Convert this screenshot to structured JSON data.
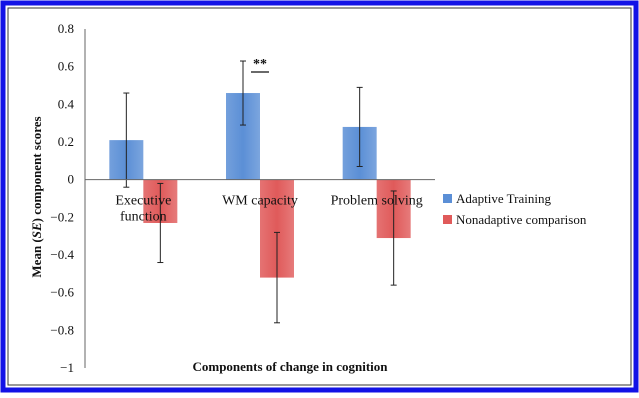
{
  "chart_data": {
    "type": "bar",
    "title": "",
    "xlabel": "Components of change in cognition",
    "ylabel_prefix": "Mean (",
    "ylabel_italic": "SE",
    "ylabel_suffix": ") component scores",
    "ylim": [
      -1,
      0.8
    ],
    "yticks": [
      0.8,
      0.6,
      0.4,
      0.2,
      0,
      -0.2,
      -0.4,
      -0.6,
      -0.8,
      -1
    ],
    "ytick_labels": [
      "0.8",
      "0.6",
      "0.4",
      "0.2",
      "0",
      "−0.2",
      "−0.4",
      "−0.6",
      "−0.8",
      "−1"
    ],
    "categories": [
      {
        "lines": [
          "Executive",
          "function"
        ]
      },
      {
        "lines": [
          "WM capacity"
        ]
      },
      {
        "lines": [
          "Problem solving"
        ]
      }
    ],
    "series": [
      {
        "name": "Adaptive Training",
        "color": "#5b8fd6",
        "values": [
          0.21,
          0.46,
          0.28
        ],
        "err_low": [
          -0.04,
          0.29,
          0.07
        ],
        "err_high": [
          0.46,
          0.63,
          0.49
        ]
      },
      {
        "name": "Nonadaptive comparison",
        "color": "#e05a5a",
        "values": [
          -0.23,
          -0.52,
          -0.31
        ],
        "err_low": [
          -0.44,
          -0.76,
          -0.56
        ],
        "err_high": [
          -0.02,
          -0.28,
          -0.06
        ]
      }
    ],
    "annotations": [
      {
        "text": "**",
        "category_index": 1
      }
    ],
    "legend_position": "right",
    "grid": false
  },
  "colors": {
    "frame": "#1212e6"
  }
}
